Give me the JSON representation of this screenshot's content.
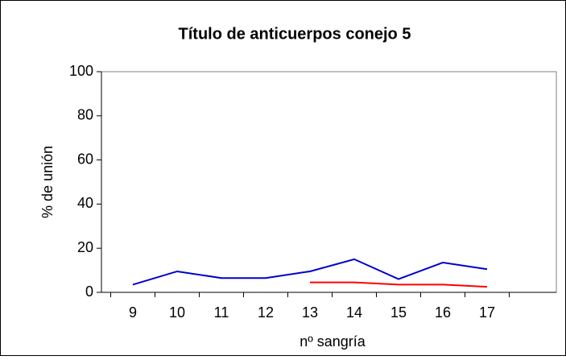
{
  "chart_data": {
    "type": "line",
    "title": "Título de anticuerpos conejo 5",
    "x_label": "nº sangría",
    "y_label": "% de unión",
    "categories": [
      "9",
      "10",
      "11",
      "12",
      "13",
      "14",
      "15",
      "16",
      "17",
      null
    ],
    "series": [
      {
        "name": "Serie1",
        "color": "#0000cc",
        "values": [
          3.5,
          9.5,
          6.5,
          6.5,
          9.5,
          15,
          6,
          13.5,
          10.5,
          null
        ]
      },
      {
        "name": "Serie2",
        "color": "#ff0000",
        "values": [
          null,
          null,
          null,
          null,
          4.5,
          4.5,
          3.5,
          3.5,
          2.5,
          null
        ]
      }
    ],
    "ylim": [
      0,
      100
    ],
    "yticks": [
      0,
      20,
      40,
      60,
      80,
      100
    ],
    "grid": false,
    "legend": false
  }
}
